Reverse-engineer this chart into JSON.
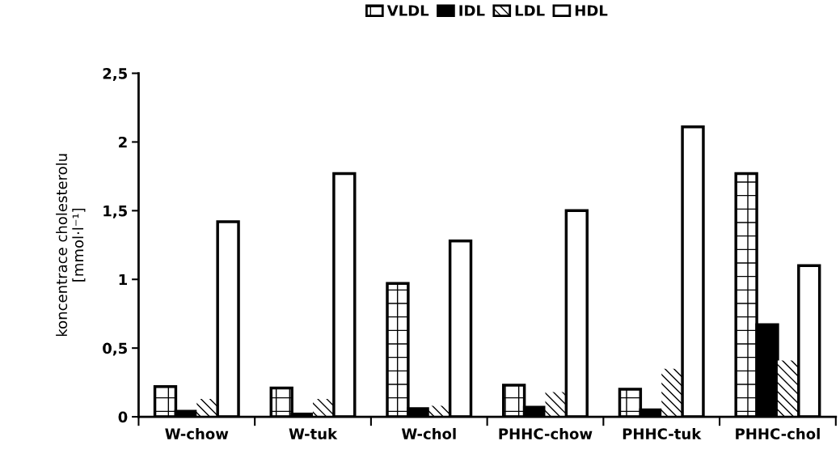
{
  "chart_data": {
    "type": "bar",
    "categories": [
      "W-chow",
      "W-tuk",
      "W-chol",
      "PHHC-chow",
      "PHHC-tuk",
      "PHHC-chol"
    ],
    "ylabel": "koncentrace cholesterolu\n[mmol·l⁻¹]",
    "series": [
      {
        "name": "VLDL",
        "color": "#000000",
        "values": [
          0.22,
          0.21,
          0.97,
          0.23,
          0.2,
          1.77
        ]
      },
      {
        "name": "IDL",
        "color": "#000000",
        "values": [
          0.04,
          0.02,
          0.06,
          0.07,
          0.05,
          0.67
        ]
      },
      {
        "name": "LDL",
        "color": "#ffffff",
        "values": [
          0.13,
          0.13,
          0.08,
          0.18,
          0.35,
          0.41
        ]
      },
      {
        "name": "HDL",
        "color": "#ffffff",
        "values": [
          1.42,
          1.77,
          1.28,
          1.5,
          2.11,
          1.1
        ]
      }
    ],
    "ylim": [
      0,
      2.5
    ],
    "yticks": [
      0,
      {
        "value": 0.5,
        "label": "0,5"
      },
      1,
      {
        "value": 1.5,
        "label": "1,5"
      },
      2,
      {
        "value": 2.5,
        "label": "2,5"
      }
    ],
    "grid": false,
    "legend": "top"
  }
}
